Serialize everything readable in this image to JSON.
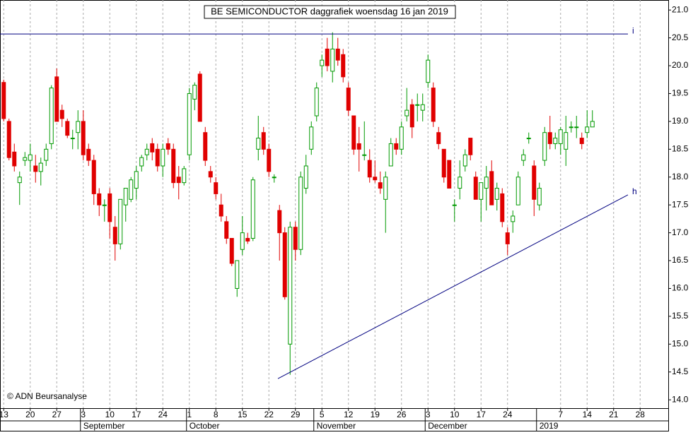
{
  "chart_data": {
    "type": "candlestick",
    "title": "BE SEMICONDUCTOR daggrafiek woensdag 16 jan 2019",
    "copyright": "© ADN Beursanalyse",
    "up_color": "#009900",
    "down_color": "#e00000",
    "ylim": [
      13.85,
      21.18
    ],
    "yticks": [
      {
        "value": 14,
        "label": "14.0"
      },
      14.5,
      {
        "value": 15,
        "label": "15.0"
      },
      15.5,
      {
        "value": 16,
        "label": "16.0"
      },
      16.5,
      {
        "value": 17,
        "label": "17.0"
      },
      17.5,
      {
        "value": 18,
        "label": "18.0"
      },
      18.5,
      {
        "value": 19,
        "label": "19.0"
      },
      19.5,
      {
        "value": 20,
        "label": "20.0"
      },
      20.5,
      {
        "value": 21,
        "label": "21.0"
      }
    ],
    "xlim": [
      -0.7,
      125.3
    ],
    "xticks": [
      {
        "value": 0,
        "label": "13"
      },
      {
        "value": 5,
        "label": "20"
      },
      {
        "value": 10,
        "label": "27"
      },
      {
        "value": 15,
        "label": "3"
      },
      {
        "value": 20,
        "label": "10"
      },
      {
        "value": 25,
        "label": "17"
      },
      {
        "value": 30,
        "label": "24"
      },
      {
        "value": 35,
        "label": "1"
      },
      {
        "value": 40,
        "label": "8"
      },
      {
        "value": 45,
        "label": "15"
      },
      {
        "value": 50,
        "label": "22"
      },
      {
        "value": 55,
        "label": "29"
      },
      {
        "value": 60,
        "label": "5"
      },
      {
        "value": 65,
        "label": "12"
      },
      {
        "value": 70,
        "label": "19"
      },
      {
        "value": 75,
        "label": "26"
      },
      {
        "value": 80,
        "label": "3"
      },
      {
        "value": 85,
        "label": "10"
      },
      {
        "value": 90,
        "label": "17"
      },
      {
        "value": 95,
        "label": "24"
      },
      {
        "value": 105,
        "label": "7"
      },
      {
        "value": 110,
        "label": "14"
      },
      {
        "value": 115,
        "label": "21"
      },
      {
        "value": 120,
        "label": "28"
      }
    ],
    "months": [
      {
        "value": 15,
        "label": "September"
      },
      {
        "value": 35,
        "label": "October"
      },
      {
        "value": 59,
        "label": "November"
      },
      {
        "value": 80,
        "label": "December"
      },
      {
        "value": 101,
        "label": "2019"
      }
    ],
    "grid": true,
    "lines": [
      {
        "label": "i",
        "color": "#000080",
        "x": [
          -0.7,
          117.7
        ],
        "y": [
          20.57,
          20.57
        ]
      },
      {
        "label": "h",
        "color": "#000080",
        "x": [
          51.7,
          117.7
        ],
        "y": [
          14.38,
          17.68
        ]
      }
    ],
    "ohlc": [
      [
        19.7,
        19.75,
        19.0,
        19.05
      ],
      [
        19.0,
        19.05,
        18.3,
        18.35
      ],
      [
        18.45,
        18.6,
        18.1,
        18.2
      ],
      [
        17.9,
        18.1,
        17.5,
        18.0
      ],
      [
        18.3,
        18.45,
        18.2,
        18.35
      ],
      [
        18.3,
        18.6,
        18.1,
        18.4
      ],
      [
        18.2,
        18.4,
        17.9,
        18.1
      ],
      [
        18.1,
        18.35,
        17.85,
        18.25
      ],
      [
        18.3,
        18.6,
        18.2,
        18.5
      ],
      [
        18.6,
        19.65,
        18.5,
        19.6
      ],
      [
        19.8,
        19.95,
        19.0,
        19.0
      ],
      [
        19.2,
        19.3,
        18.9,
        19.05
      ],
      [
        19.0,
        19.05,
        18.7,
        18.75
      ],
      [
        18.7,
        18.85,
        18.5,
        18.7
      ],
      [
        18.8,
        19.2,
        18.5,
        19.0
      ],
      [
        19.0,
        19.2,
        18.3,
        18.4
      ],
      [
        18.5,
        18.6,
        18.2,
        18.3
      ],
      [
        18.3,
        18.4,
        17.5,
        17.7
      ],
      [
        17.7,
        17.8,
        17.3,
        17.5
      ],
      [
        17.5,
        17.6,
        17.2,
        17.5
      ],
      [
        17.7,
        17.8,
        16.9,
        17.2
      ],
      [
        17.1,
        17.3,
        16.5,
        16.8
      ],
      [
        16.8,
        17.6,
        16.7,
        17.6
      ],
      [
        17.5,
        17.8,
        17.2,
        17.8
      ],
      [
        17.6,
        18.0,
        17.55,
        17.95
      ],
      [
        17.8,
        18.2,
        17.6,
        18.1
      ],
      [
        18.2,
        18.4,
        18.1,
        18.35
      ],
      [
        18.4,
        18.6,
        18.3,
        18.5
      ],
      [
        18.6,
        18.7,
        18.3,
        18.45
      ],
      [
        18.5,
        18.6,
        18.1,
        18.2
      ],
      [
        18.2,
        18.6,
        18.0,
        18.5
      ],
      [
        18.6,
        18.7,
        18.4,
        18.5
      ],
      [
        18.5,
        18.6,
        17.8,
        17.9
      ],
      [
        18.0,
        18.2,
        17.6,
        17.9
      ],
      [
        17.9,
        18.2,
        17.85,
        18.15
      ],
      [
        18.4,
        19.6,
        18.3,
        19.5
      ],
      [
        19.4,
        19.7,
        19.2,
        19.65
      ],
      [
        19.85,
        19.9,
        19.0,
        19.0
      ],
      [
        18.8,
        18.9,
        18.2,
        18.3
      ],
      [
        18.1,
        18.2,
        17.9,
        18.0
      ],
      [
        17.9,
        18.0,
        17.6,
        17.7
      ],
      [
        17.5,
        17.7,
        17.2,
        17.3
      ],
      [
        17.2,
        17.3,
        16.8,
        16.9
      ],
      [
        16.9,
        16.9,
        16.4,
        16.45
      ],
      [
        16.0,
        16.5,
        15.85,
        16.5
      ],
      [
        16.7,
        17.3,
        16.6,
        17.0
      ],
      [
        16.9,
        17.0,
        16.8,
        16.85
      ],
      [
        16.9,
        18.0,
        16.85,
        17.95
      ],
      [
        18.5,
        19.1,
        18.3,
        18.7
      ],
      [
        18.8,
        18.9,
        18.4,
        18.5
      ],
      [
        18.5,
        18.6,
        18.0,
        18.1
      ],
      [
        18.0,
        18.05,
        17.9,
        18.0
      ],
      [
        17.4,
        17.5,
        16.5,
        17.0
      ],
      [
        17.0,
        17.1,
        15.8,
        15.85
      ],
      [
        15.0,
        17.2,
        14.45,
        17.1
      ],
      [
        17.1,
        17.2,
        16.5,
        16.7
      ],
      [
        16.7,
        18.1,
        16.6,
        18.0
      ],
      [
        17.8,
        18.4,
        17.7,
        18.2
      ],
      [
        18.5,
        19.0,
        18.4,
        18.9
      ],
      [
        19.1,
        19.7,
        19.0,
        19.6
      ],
      [
        20.0,
        20.2,
        19.8,
        20.1
      ],
      [
        20.3,
        20.5,
        19.9,
        20.0
      ],
      [
        19.9,
        20.6,
        19.7,
        20.3
      ],
      [
        20.3,
        20.5,
        20.0,
        20.1
      ],
      [
        20.2,
        20.3,
        19.7,
        19.8
      ],
      [
        19.6,
        19.7,
        19.1,
        19.2
      ],
      [
        19.1,
        19.1,
        18.4,
        18.5
      ],
      [
        18.6,
        18.9,
        18.1,
        18.5
      ],
      [
        18.4,
        19.0,
        18.3,
        18.4
      ],
      [
        18.3,
        18.5,
        17.9,
        18.0
      ],
      [
        18.0,
        18.3,
        17.9,
        17.95
      ],
      [
        17.9,
        18.1,
        17.7,
        17.8
      ],
      [
        17.6,
        18.1,
        17.0,
        18.0
      ],
      [
        18.2,
        18.7,
        18.2,
        18.6
      ],
      [
        18.6,
        18.7,
        18.4,
        18.5
      ],
      [
        18.5,
        19.0,
        18.4,
        18.9
      ],
      [
        19.1,
        19.6,
        19.0,
        19.2
      ],
      [
        19.3,
        19.4,
        18.7,
        18.9
      ],
      [
        19.3,
        19.5,
        19.0,
        19.3
      ],
      [
        19.2,
        19.5,
        19.0,
        19.3
      ],
      [
        19.7,
        20.2,
        19.6,
        20.1
      ],
      [
        19.6,
        19.7,
        18.9,
        19.0
      ],
      [
        18.8,
        18.9,
        18.5,
        18.6
      ],
      [
        18.5,
        18.5,
        17.9,
        18.0
      ],
      [
        18.3,
        18.3,
        17.8,
        17.8
      ],
      [
        17.5,
        17.6,
        17.2,
        17.5
      ],
      [
        17.8,
        18.3,
        17.6,
        18.0
      ],
      [
        18.2,
        18.5,
        18.1,
        18.4
      ],
      [
        18.7,
        18.7,
        18.3,
        18.4
      ],
      [
        18.0,
        18.1,
        17.6,
        17.6
      ],
      [
        17.6,
        17.9,
        17.2,
        17.9
      ],
      [
        17.8,
        18.2,
        17.4,
        18.0
      ],
      [
        18.1,
        18.3,
        17.5,
        17.5
      ],
      [
        17.6,
        17.9,
        17.4,
        17.8
      ],
      [
        17.7,
        17.8,
        17.1,
        17.2
      ],
      [
        17.0,
        17.1,
        16.6,
        16.8
      ],
      [
        17.2,
        17.4,
        17.0,
        17.3
      ],
      [
        17.5,
        18.1,
        17.5,
        18.0
      ],
      [
        18.3,
        18.5,
        18.2,
        18.4
      ],
      [
        18.7,
        18.8,
        18.6,
        18.7
      ],
      [
        18.2,
        18.3,
        17.3,
        17.6
      ],
      [
        17.5,
        17.9,
        17.4,
        17.8
      ],
      [
        18.3,
        18.9,
        18.2,
        18.8
      ],
      [
        18.8,
        19.1,
        18.5,
        18.6
      ],
      [
        18.6,
        18.8,
        18.5,
        18.7
      ],
      [
        18.6,
        18.9,
        18.4,
        18.85
      ],
      [
        18.5,
        19.1,
        18.2,
        18.8
      ],
      [
        18.9,
        19.0,
        18.8,
        18.9
      ],
      [
        18.9,
        19.1,
        18.7,
        18.9
      ],
      [
        18.7,
        18.8,
        18.5,
        18.6
      ],
      [
        18.8,
        19.2,
        18.7,
        18.9
      ],
      [
        18.9,
        19.2,
        18.9,
        19.0
      ]
    ]
  }
}
